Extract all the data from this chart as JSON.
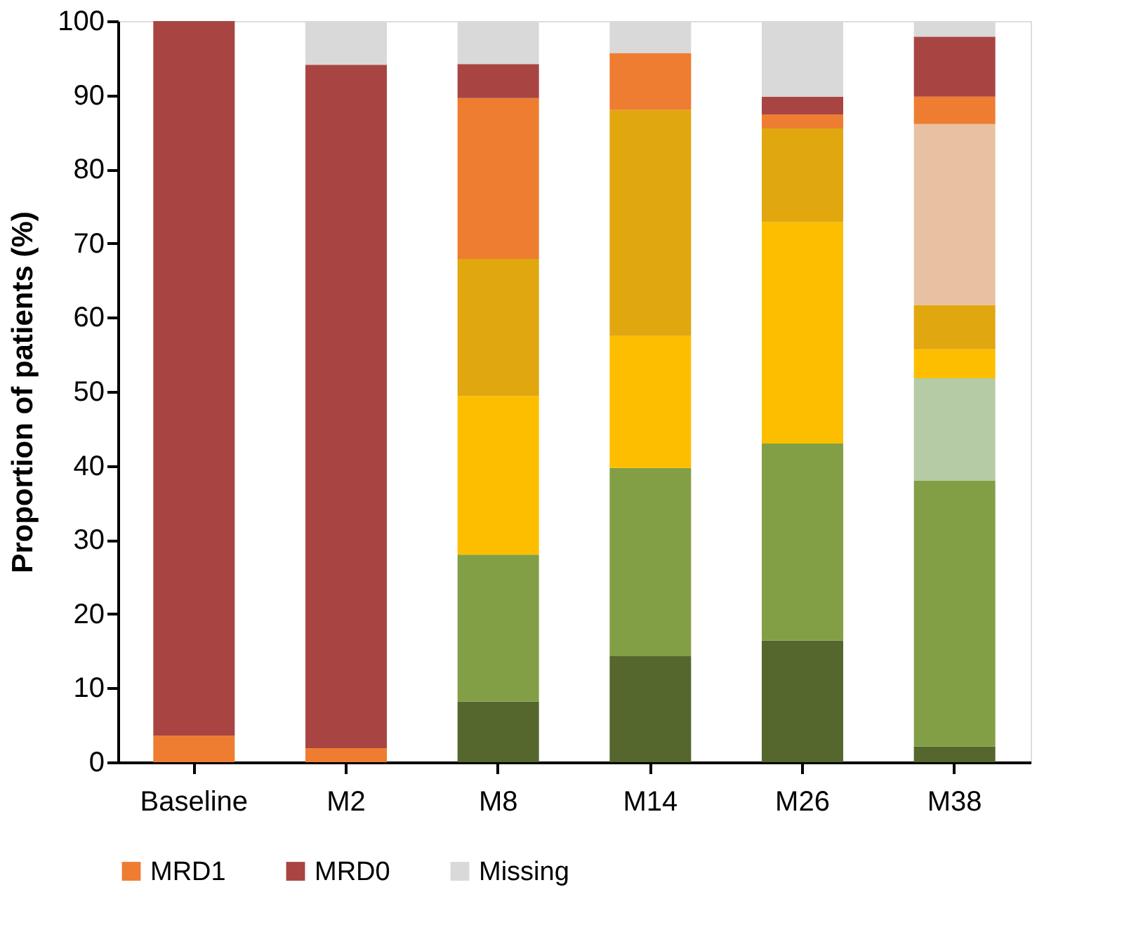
{
  "chart_data": {
    "type": "bar",
    "stacked": true,
    "ylabel": "Proportion of patients (%)",
    "categories": [
      "Baseline",
      "M2",
      "M8",
      "M14",
      "M26",
      "M38"
    ],
    "series": [
      {
        "color": "#55672d",
        "values": [
          null,
          null,
          8.2,
          14.3,
          16.4,
          2.1
        ]
      },
      {
        "color": "#839f46",
        "values": [
          null,
          null,
          19.8,
          25.4,
          26.6,
          35.9
        ]
      },
      {
        "color": "#b5cba6",
        "values": [
          null,
          null,
          null,
          null,
          null,
          13.8
        ]
      },
      {
        "color": "#fdbe00",
        "values": [
          null,
          null,
          21.4,
          17.8,
          29.9,
          3.9
        ]
      },
      {
        "color": "#e1a70f",
        "values": [
          null,
          null,
          18.5,
          30.5,
          12.6,
          6.0
        ]
      },
      {
        "color": "#e8c1a2",
        "values": [
          null,
          null,
          null,
          null,
          null,
          24.4
        ]
      },
      {
        "name": "MRD1",
        "color": "#ee7d31",
        "values": [
          3.6,
          1.9,
          21.7,
          7.7,
          1.9,
          3.7
        ]
      },
      {
        "name": "MRD0",
        "color": "#a84542",
        "values": [
          96.4,
          92.2,
          4.6,
          null,
          2.4,
          8.1
        ]
      },
      {
        "name": "Missing",
        "color": "#d9d9d9",
        "values": [
          null,
          5.9,
          5.8,
          4.3,
          10.2,
          2.1
        ]
      }
    ],
    "ylim": [
      0,
      100
    ],
    "yticks": [
      0,
      10,
      20,
      30,
      40,
      50,
      60,
      70,
      80,
      90,
      100
    ],
    "grid": false,
    "legend": "bottom left"
  }
}
